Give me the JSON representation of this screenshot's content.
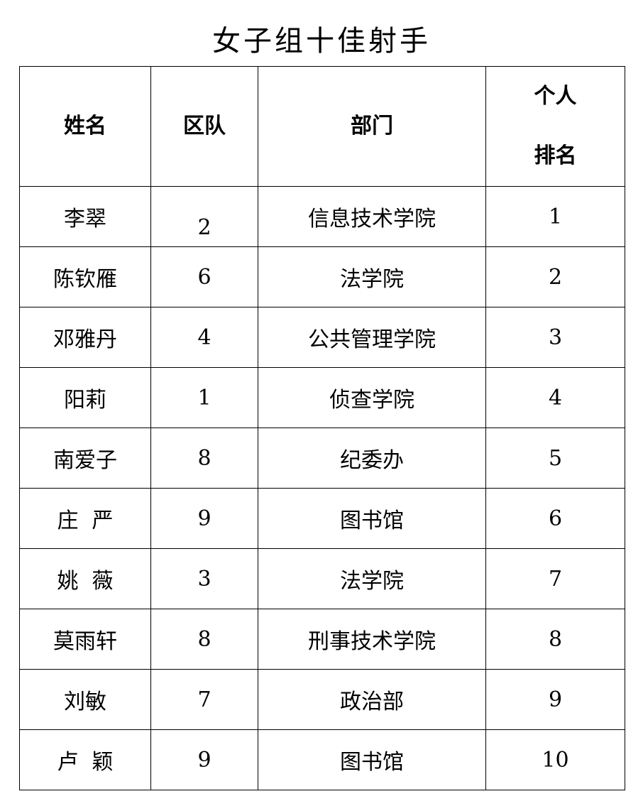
{
  "title": "女子组十佳射手",
  "table": {
    "headers": [
      "姓名",
      "区队",
      "部门",
      "个人\n排名"
    ],
    "rows": [
      [
        "李翠",
        "2",
        "信息技术学院",
        "1"
      ],
      [
        "陈钦雁",
        "6",
        "法学院",
        "2"
      ],
      [
        "邓雅丹",
        "4",
        "公共管理学院",
        "3"
      ],
      [
        "阳莉",
        "1",
        "侦查学院",
        "4"
      ],
      [
        "南爱子",
        "8",
        "纪委办",
        "5"
      ],
      [
        "庄  严",
        "9",
        "图书馆",
        "6"
      ],
      [
        "姚  薇",
        "3",
        "法学院",
        "7"
      ],
      [
        "莫雨轩",
        "8",
        "刑事技术学院",
        "8"
      ],
      [
        "刘敏",
        "7",
        "政治部",
        "9"
      ],
      [
        "卢  颖",
        "9",
        "图书馆",
        "10"
      ]
    ]
  }
}
